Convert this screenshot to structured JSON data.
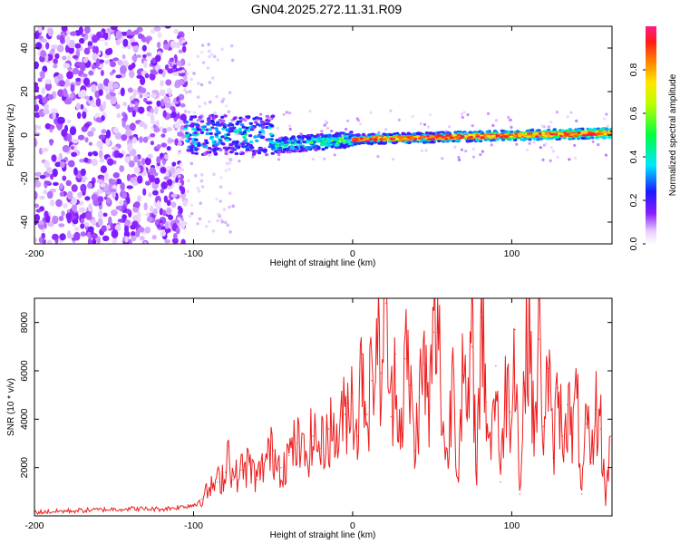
{
  "title": "GN04.2025.272.11.31.R09",
  "colors": {
    "snr_line": "#ee1c1c",
    "axis": "#000000",
    "background": "#ffffff"
  },
  "chart_data": [
    {
      "type": "heatmap",
      "title": "GN04.2025.272.11.31.R09",
      "xlabel": "Height of straight line (km)",
      "ylabel": "Frequency (Hz)",
      "xlim": [
        -200,
        163
      ],
      "ylim": [
        -50,
        50
      ],
      "xticks": [
        -200,
        -100,
        0,
        100
      ],
      "yticks": [
        -40,
        -20,
        0,
        20,
        40
      ],
      "colorbar": {
        "label": "Normalized spectral amplitude",
        "range": [
          0,
          1
        ],
        "ticks": [
          "0.0",
          "0.2",
          "0.4",
          "0.6",
          "0.8"
        ],
        "colormap": "rainbow (white → violet → blue → cyan → green → yellow → orange → red → pink)"
      },
      "description_points": [
        {
          "x_range": [
            -200,
            -110
          ],
          "freq_range": [
            -50,
            50
          ],
          "amplitude": "low (broadband noise)"
        },
        {
          "x_range": [
            -105,
            -50
          ],
          "freq_range": [
            -10,
            10
          ],
          "amplitude": "0.2-0.5"
        },
        {
          "x_range": [
            -50,
            0
          ],
          "freq_center": -5,
          "amplitude": "0.3-0.6"
        },
        {
          "x_range": [
            0,
            163
          ],
          "freq_center": -2,
          "amplitude": "0.6-0.95"
        }
      ]
    },
    {
      "type": "line",
      "xlabel": "Height of straight line (km)",
      "ylabel": "SNR (10 * v/v)",
      "xlim": [
        -200,
        163
      ],
      "ylim": [
        0,
        9000
      ],
      "xticks": [
        -200,
        -100,
        0,
        100
      ],
      "yticks": [
        2000,
        4000,
        6000,
        8000
      ],
      "series": [
        {
          "name": "SNR",
          "x": [
            -200,
            -180,
            -160,
            -140,
            -120,
            -110,
            -100,
            -95,
            -90,
            -85,
            -80,
            -78,
            -75,
            -70,
            -65,
            -60,
            -55,
            -50,
            -45,
            -40,
            -35,
            -30,
            -25,
            -20,
            -15,
            -10,
            -5,
            0,
            3,
            6,
            9,
            12,
            15,
            18,
            21,
            24,
            27,
            30,
            33,
            36,
            39,
            42,
            45,
            48,
            51,
            54,
            57,
            60,
            63,
            66,
            69,
            72,
            75,
            78,
            81,
            84,
            87,
            90,
            93,
            96,
            99,
            102,
            105,
            108,
            111,
            114,
            117,
            120,
            123,
            126,
            129,
            132,
            135,
            138,
            141,
            144,
            147,
            150,
            153,
            156,
            159,
            162
          ],
          "values": [
            150,
            200,
            250,
            300,
            280,
            350,
            450,
            700,
            1100,
            1400,
            1800,
            2900,
            1500,
            1900,
            2100,
            1500,
            2300,
            2700,
            2000,
            2500,
            3000,
            2400,
            3300,
            2800,
            3600,
            3200,
            4200,
            5100,
            3300,
            6700,
            4200,
            5600,
            7100,
            5900,
            8800,
            4100,
            6700,
            3200,
            6500,
            5400,
            2700,
            4900,
            6300,
            4100,
            7600,
            7300,
            3500,
            2100,
            6800,
            1600,
            5800,
            3900,
            7000,
            2100,
            8200,
            4700,
            2900,
            6200,
            1400,
            5700,
            4300,
            7700,
            900,
            5500,
            8900,
            2700,
            7300,
            3700,
            6100,
            2400,
            5300,
            3300,
            4600,
            3300,
            4900,
            900,
            3800,
            2200,
            4400,
            3600,
            600,
            3300
          ]
        }
      ]
    }
  ]
}
